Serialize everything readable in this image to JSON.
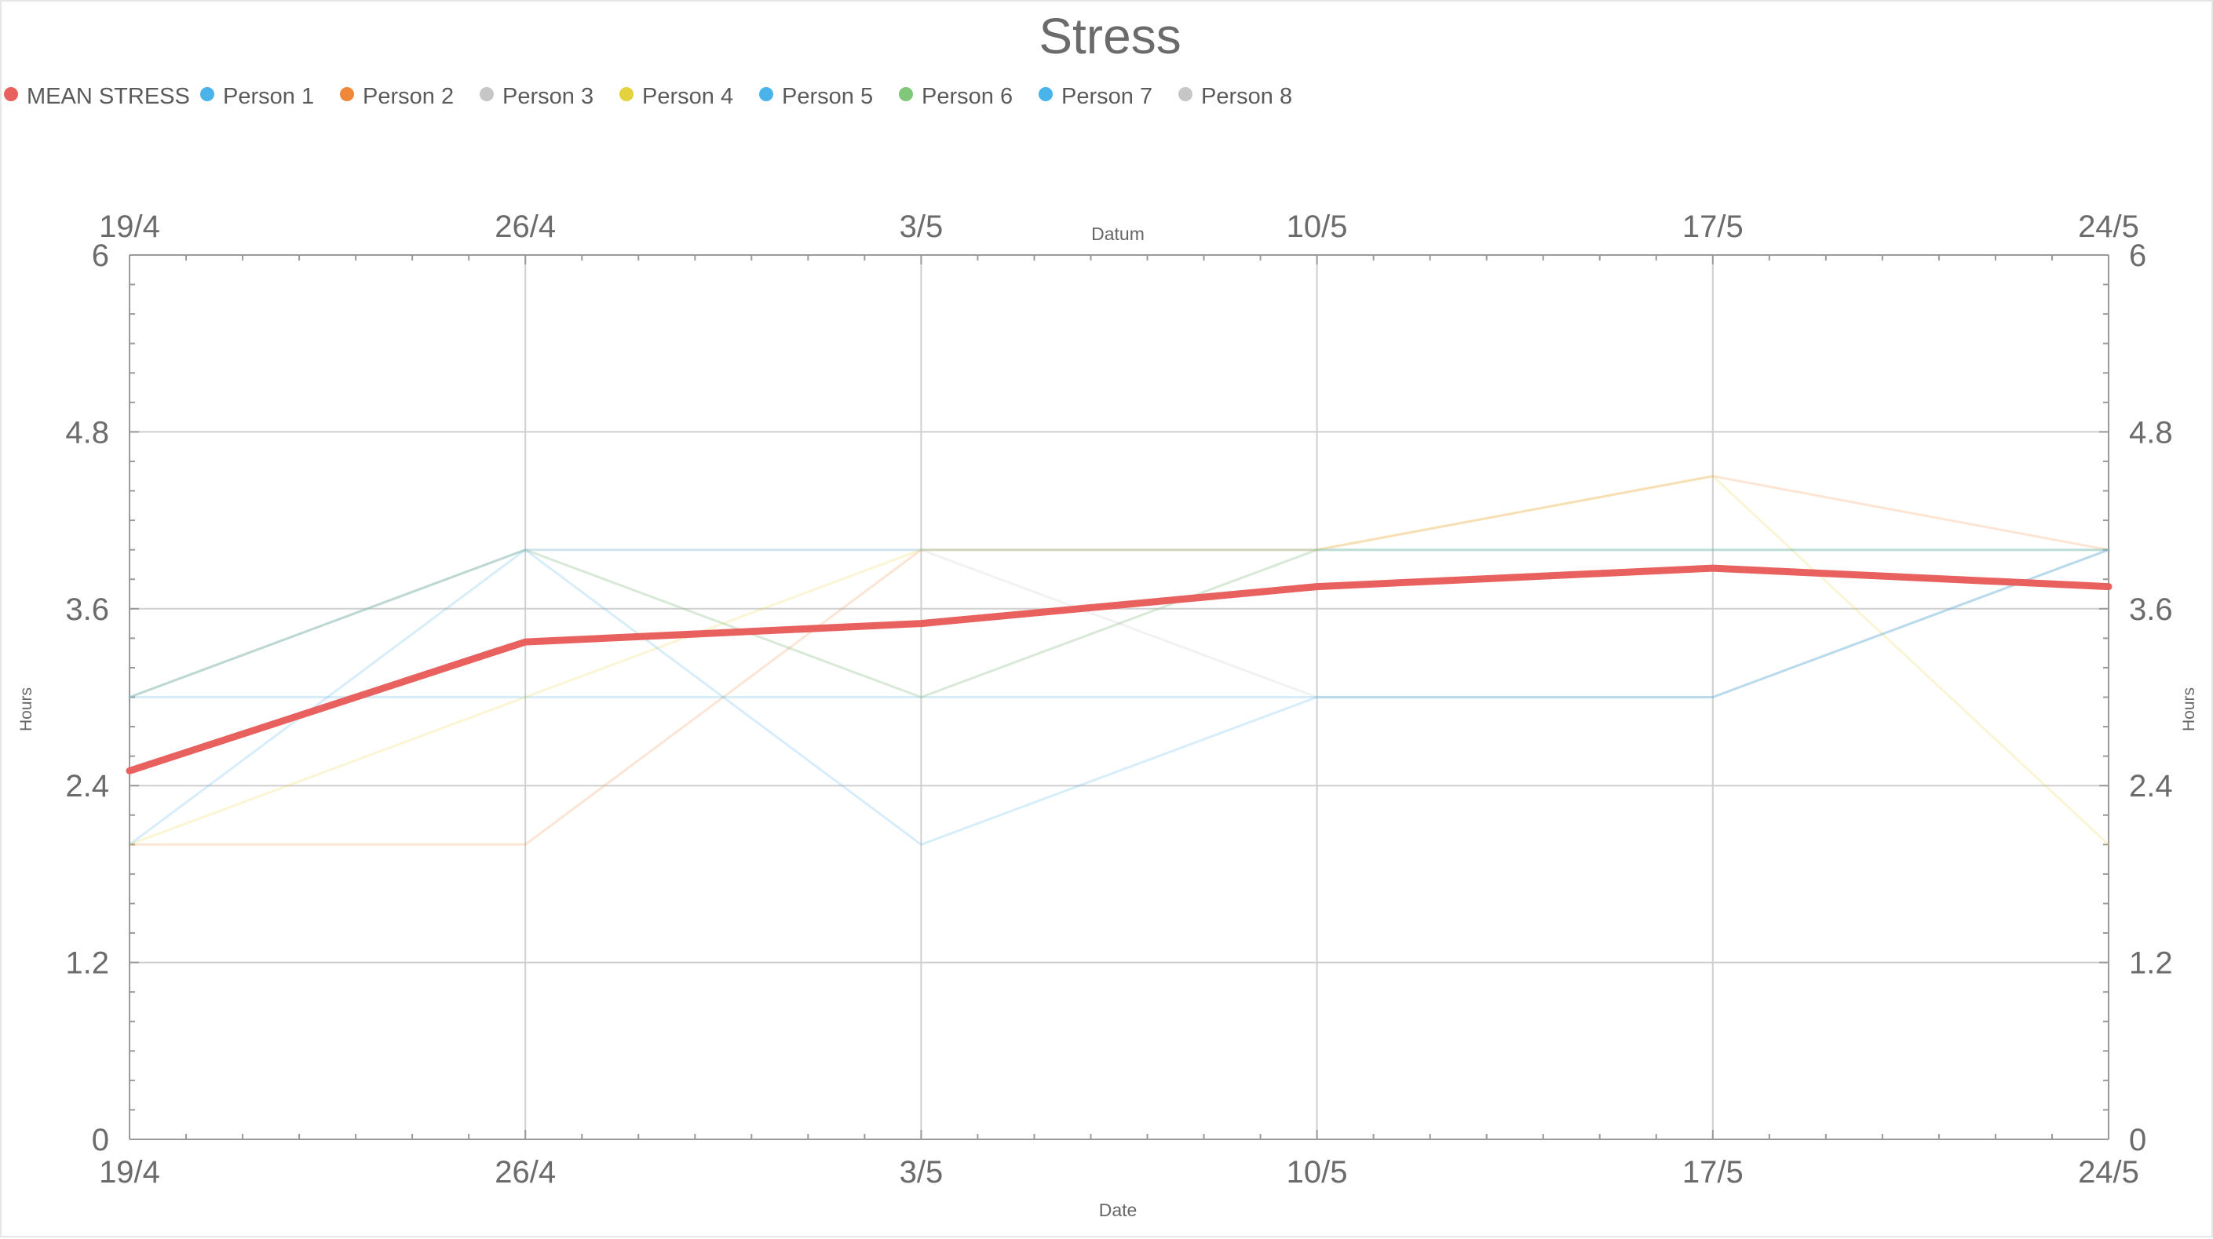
{
  "chart_data": {
    "type": "line",
    "title": "Stress",
    "x_top_label": "Datum",
    "xlabel": "Date",
    "ylabel_left": "Hours",
    "ylabel_right": "Hours",
    "x_tick_labels": [
      "19/4",
      "26/4",
      "3/5",
      "10/5",
      "17/5",
      "24/5"
    ],
    "x": [
      "19/4",
      "26/4",
      "3/5",
      "10/5",
      "17/5",
      "24/5"
    ],
    "ylim": [
      0,
      6
    ],
    "y_ticks": [
      "0",
      "1.2",
      "2.4",
      "3.6",
      "4.8",
      "6"
    ],
    "y_tick_values": [
      0,
      1.2,
      2.4,
      3.6,
      4.8,
      6
    ],
    "grid": true,
    "legend_position": "top-left",
    "series": [
      {
        "name": "MEAN STRESS",
        "color": "#e8615f",
        "emphasis": true,
        "values": [
          2.5,
          3.375,
          3.5,
          3.75,
          3.875,
          3.75
        ]
      },
      {
        "name": "Person 1",
        "color": "#4ab3ea",
        "emphasis": false,
        "values": [
          3,
          3,
          3,
          3,
          3,
          4
        ]
      },
      {
        "name": "Person 2",
        "color": "#f0883a",
        "emphasis": false,
        "values": [
          2,
          2,
          4,
          4,
          4.5,
          4
        ]
      },
      {
        "name": "Person 3",
        "color": "#c6c6c6",
        "emphasis": false,
        "values": [
          3,
          4,
          3,
          4,
          4,
          4
        ]
      },
      {
        "name": "Person 4",
        "color": "#e4d23f",
        "emphasis": false,
        "values": [
          2,
          3,
          4,
          4,
          4.5,
          2
        ]
      },
      {
        "name": "Person 5",
        "color": "#4ab3ea",
        "emphasis": false,
        "values": [
          3,
          4,
          4,
          4,
          4,
          4
        ]
      },
      {
        "name": "Person 6",
        "color": "#7fc87a",
        "emphasis": false,
        "values": [
          3,
          4,
          3,
          4,
          4,
          4
        ]
      },
      {
        "name": "Person 7",
        "color": "#4ab3ea",
        "emphasis": false,
        "values": [
          2,
          4,
          2,
          3,
          3,
          4
        ]
      },
      {
        "name": "Person 8",
        "color": "#c6c6c6",
        "emphasis": false,
        "values": [
          3,
          4,
          4,
          3,
          3,
          4
        ]
      }
    ]
  }
}
